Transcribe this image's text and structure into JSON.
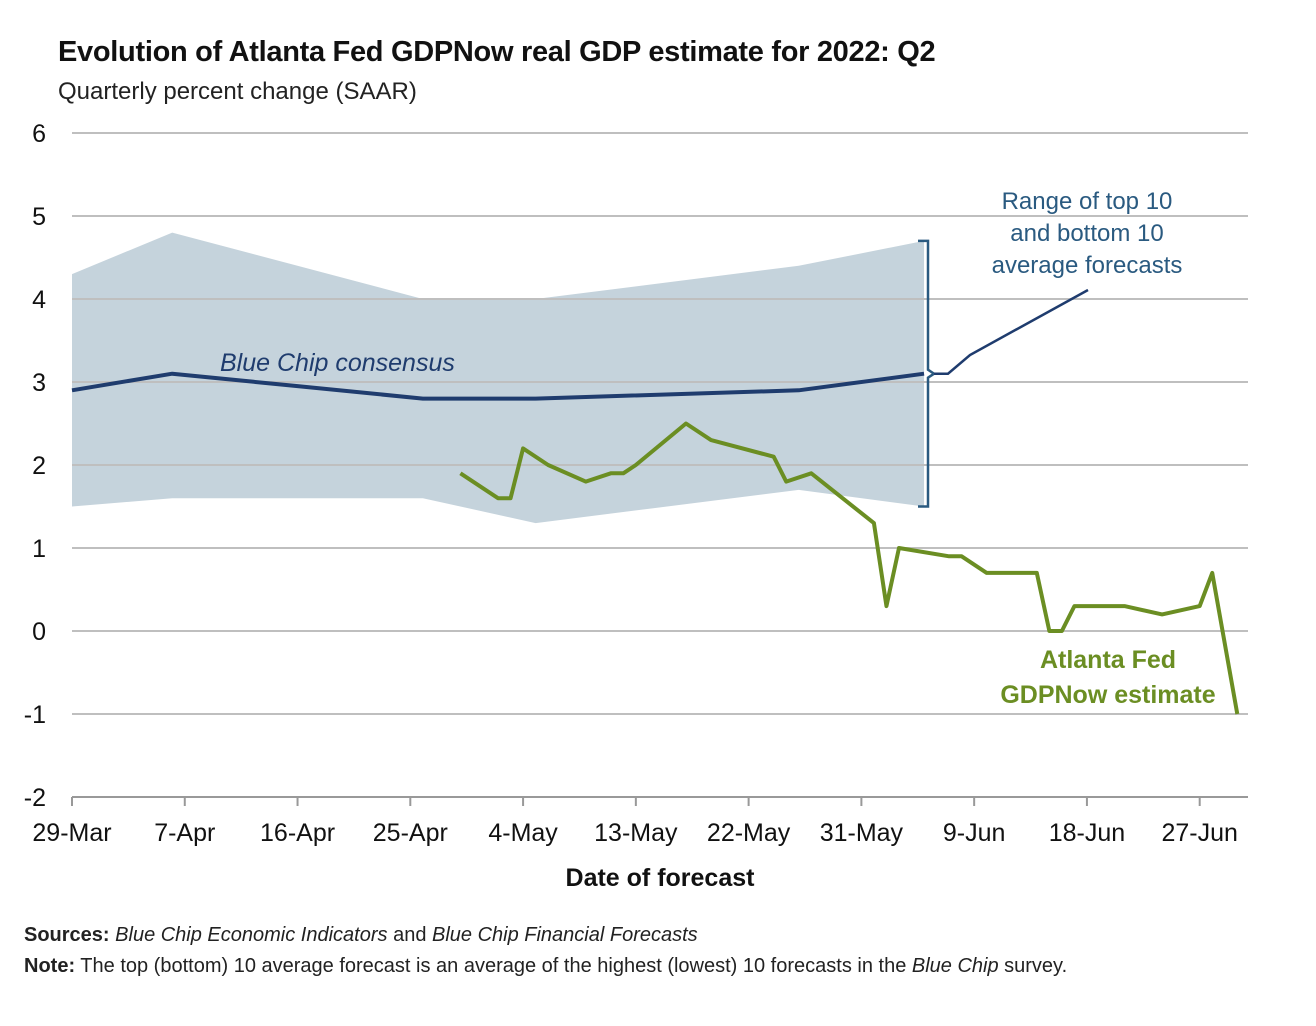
{
  "chart_data": {
    "type": "line",
    "title": "Evolution of Atlanta Fed GDPNow real GDP estimate for 2022: Q2",
    "subtitle": "Quarterly percent change (SAAR)",
    "xlabel": "Date of forecast",
    "ylabel": "",
    "x_unit": "days since 29-Mar-2022",
    "xlim": [
      0,
      94
    ],
    "ylim": [
      -2,
      6
    ],
    "yticks": [
      6,
      5,
      4,
      3,
      2,
      1,
      0,
      -1,
      -2
    ],
    "xticks": [
      {
        "x": 0,
        "label": "29-Mar"
      },
      {
        "x": 9,
        "label": "7-Apr"
      },
      {
        "x": 18,
        "label": "16-Apr"
      },
      {
        "x": 27,
        "label": "25-Apr"
      },
      {
        "x": 36,
        "label": "4-May"
      },
      {
        "x": 45,
        "label": "13-May"
      },
      {
        "x": 54,
        "label": "22-May"
      },
      {
        "x": 63,
        "label": "31-May"
      },
      {
        "x": 72,
        "label": "9-Jun"
      },
      {
        "x": 81,
        "label": "18-Jun"
      },
      {
        "x": 90,
        "label": "27-Jun"
      }
    ],
    "grid": true,
    "series": [
      {
        "name": "Atlanta Fed GDPNow estimate",
        "color": "#6b8e23",
        "x": [
          31,
          34,
          35,
          36,
          38,
          41,
          43,
          44,
          45,
          49,
          51,
          56,
          57,
          59,
          64,
          65,
          66,
          70,
          71,
          73,
          77,
          78,
          79,
          80,
          84,
          87,
          90,
          91,
          93
        ],
        "y": [
          1.9,
          1.6,
          1.6,
          2.2,
          2.0,
          1.8,
          1.9,
          1.9,
          2.0,
          2.5,
          2.3,
          2.1,
          1.8,
          1.9,
          1.3,
          0.3,
          1.0,
          0.9,
          0.9,
          0.7,
          0.7,
          0.0,
          0.0,
          0.3,
          0.3,
          0.2,
          0.3,
          0.7,
          -1.0
        ]
      },
      {
        "name": "Blue Chip consensus",
        "color": "#1f3c6e",
        "x": [
          0,
          8,
          18,
          28,
          37,
          58,
          68
        ],
        "y": [
          2.9,
          3.1,
          2.95,
          2.8,
          2.8,
          2.9,
          3.1
        ]
      }
    ],
    "band": {
      "name": "Range of top 10 and bottom 10 average forecasts",
      "color": "#c5d3dc",
      "x": [
        0,
        8,
        28,
        37,
        58,
        68
      ],
      "upper": [
        4.3,
        4.8,
        4.0,
        4.0,
        4.4,
        4.7
      ],
      "lower": [
        1.5,
        1.6,
        1.6,
        1.3,
        1.7,
        1.5
      ]
    },
    "annotations": {
      "band_label": [
        "Range of top 10",
        "and bottom 10",
        "average forecasts"
      ],
      "consensus_label": "Blue Chip consensus",
      "gdpnow_label": [
        "Atlanta Fed",
        "GDPNow estimate"
      ]
    }
  },
  "footer": {
    "sources_label": "Sources:",
    "sources_1": "Blue Chip Economic Indicators",
    "sources_and": " and ",
    "sources_2": "Blue Chip Financial Forecasts",
    "note_label": "Note:",
    "note_text": " The top (bottom) 10 average forecast is an average of the highest (lowest) 10 forecasts in the ",
    "note_italic": "Blue Chip",
    "note_end": " survey."
  }
}
